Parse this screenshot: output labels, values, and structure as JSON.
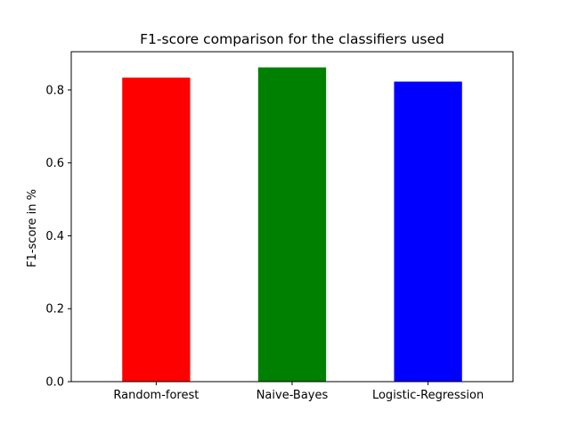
{
  "chart_data": {
    "type": "bar",
    "title": "F1-score comparison for the classifiers used",
    "xlabel": "",
    "ylabel": "F1-score in %",
    "categories": [
      "Random-forest",
      "Naive-Bayes",
      "Logistic-Regression"
    ],
    "values": [
      0.834,
      0.862,
      0.823
    ],
    "colors": [
      "#ff0000",
      "#008000",
      "#0000ff"
    ],
    "ylim": [
      0,
      0.905
    ],
    "yticks": [
      0.0,
      0.2,
      0.4,
      0.6,
      0.8
    ],
    "ytick_labels": [
      "0.0",
      "0.2",
      "0.4",
      "0.6",
      "0.8"
    ],
    "grid": false,
    "legend": false
  }
}
